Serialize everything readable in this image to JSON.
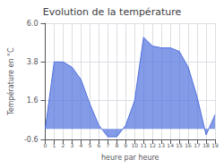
{
  "chart_data": {
    "type": "area",
    "title": "Evolution de la température",
    "xlabel": "heure par heure",
    "ylabel": "Température en °C",
    "x": [
      0,
      1,
      2,
      3,
      4,
      5,
      6,
      7,
      8,
      9,
      10,
      11,
      12,
      13,
      14,
      15,
      16,
      17,
      18,
      19
    ],
    "values": [
      0.0,
      3.8,
      3.8,
      3.5,
      2.8,
      1.4,
      0.2,
      -0.45,
      -0.45,
      0.2,
      1.6,
      5.2,
      4.7,
      4.6,
      4.6,
      4.4,
      3.5,
      1.8,
      -0.35,
      0.8
    ],
    "xlim": [
      0,
      19
    ],
    "xticks": [
      0,
      1,
      2,
      3,
      4,
      5,
      6,
      7,
      8,
      9,
      10,
      11,
      12,
      13,
      14,
      15,
      16,
      17,
      18,
      19
    ],
    "ylim": [
      -0.6,
      6.0
    ],
    "yticks": [
      -0.6,
      1.6,
      3.8,
      {
        "value": 6.0,
        "label": "6.0"
      }
    ],
    "grid": true
  }
}
